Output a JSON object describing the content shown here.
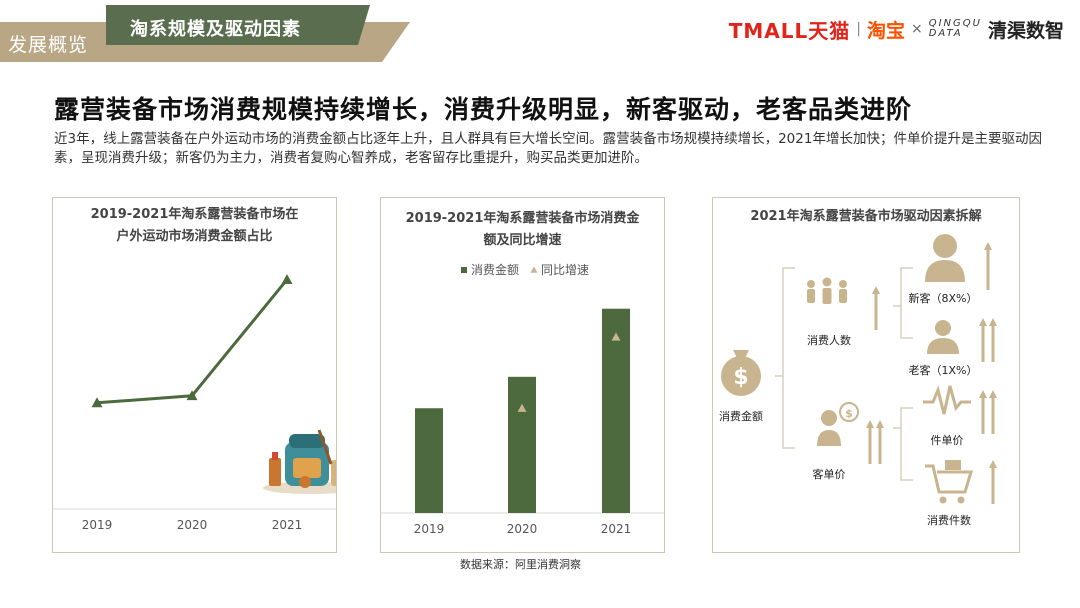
{
  "header": {
    "section": "发展概览",
    "topic": "淘系规模及驱动因素",
    "logos": {
      "tmall": "TMALL天猫",
      "taobao": "淘宝",
      "times": "×",
      "qm_top": "QINGQU",
      "qm_bottom": "DATA",
      "qm_cn": "清渠数智"
    }
  },
  "headline": "露营装备市场消费规模持续增长，消费升级明显，新客驱动，老客品类进阶",
  "description": "近3年，线上露营装备在户外运动市场的消费金额占比逐年上升，且人群具有巨大增长空间。露营装备市场规模持续增长，2021年增长加快；件单价提升是主要驱动因素，呈现消费升级；新客仍为主力，消费者复购心智养成，老客留存比重提升，购买品类更加进阶。",
  "footnote": "数据来源：阿里消费洞察",
  "colors": {
    "accent_green": "#4d6a3f",
    "accent_tan": "#c8b48e",
    "header_green": "#5a6e4f",
    "header_tan": "#b8a684"
  },
  "chart_data": [
    {
      "type": "line",
      "title_lines": [
        "2019-2021年淘系露营装备市场在",
        "户外运动市场消费金额占比"
      ],
      "categories": [
        "2019",
        "2020",
        "2021"
      ],
      "values": [
        1.0,
        1.2,
        4.5
      ],
      "marker": "triangle",
      "color": "#4d6a3f"
    },
    {
      "type": "bar",
      "title_lines": [
        "2019-2021年淘系露营装备市场消费金",
        "额及同比增速"
      ],
      "categories": [
        "2019",
        "2020",
        "2021"
      ],
      "series": [
        {
          "name": "消费金额",
          "type": "bar",
          "values": [
            100,
            130,
            195
          ],
          "color": "#4d6a3f"
        },
        {
          "name": "同比增速",
          "type": "marker",
          "values": [
            null,
            100,
            168
          ],
          "color": "#c8b48e"
        }
      ],
      "legend_position": "top"
    },
    {
      "type": "diagram",
      "title": "2021年淘系露营装备市场驱动因素拆解",
      "root": {
        "label": "消费金额",
        "icon": "money-bag-icon"
      },
      "branches": [
        {
          "label": "消费人数",
          "icon": "people-group-icon",
          "trend_arrows": 1,
          "children": [
            {
              "label": "新客（8X%）",
              "icon": "person-large-icon",
              "trend_arrows": 1
            },
            {
              "label": "老客（1X%）",
              "icon": "person-small-icon",
              "trend_arrows": 2
            }
          ]
        },
        {
          "label": "客单价",
          "icon": "buyer-coin-icon",
          "trend_arrows": 2,
          "children": [
            {
              "label": "件单价",
              "icon": "pulse-icon",
              "trend_arrows": 2
            },
            {
              "label": "消费件数",
              "icon": "cart-icon",
              "trend_arrows": 1
            }
          ]
        }
      ]
    }
  ]
}
